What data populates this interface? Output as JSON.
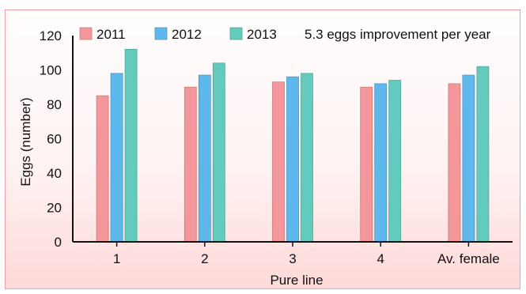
{
  "chart_data": {
    "type": "bar",
    "title": "",
    "xlabel": "Pure line",
    "ylabel": "Eggs (number)",
    "ylim": [
      0,
      120
    ],
    "yticks": [
      "0",
      "20",
      "40",
      "60",
      "80",
      "100",
      "120"
    ],
    "categories": [
      "1",
      "2",
      "3",
      "4",
      "Av. female"
    ],
    "series": [
      {
        "name": "2011",
        "values": [
          85,
          90,
          93,
          90,
          92
        ],
        "color": "#f4979a"
      },
      {
        "name": "2012",
        "values": [
          98,
          97,
          96,
          92,
          97
        ],
        "color": "#5fb8ec"
      },
      {
        "name": "2013",
        "values": [
          112,
          104,
          98,
          94,
          102
        ],
        "color": "#63cbbd"
      }
    ],
    "annotation": "5.3 eggs improvement per year",
    "legend_position": "top",
    "grid": false
  }
}
